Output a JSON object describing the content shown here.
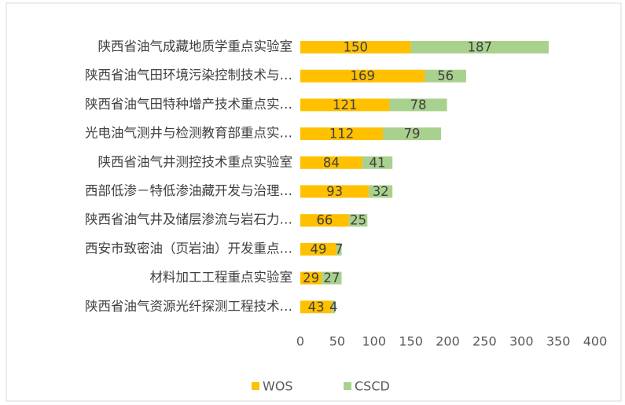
{
  "chart_data": {
    "type": "stacked-barh",
    "categories": [
      "陕西省油气成藏地质学重点实验室",
      "陕西省油气田环境污染控制技术与…",
      "陕西省油气田特种增产技术重点实…",
      "光电油气测井与检测教育部重点实…",
      "陕西省油气井测控技术重点实验室",
      "西部低渗－特低渗油藏开发与治理…",
      "陕西省油气井及储层渗流与岩石力…",
      "西安市致密油（页岩油）开发重点…",
      "材料加工工程重点实验室",
      "陕西省油气资源光纤探测工程技术…"
    ],
    "series": [
      {
        "name": "WOS",
        "color": "#FFC000",
        "values": [
          150,
          169,
          121,
          112,
          84,
          93,
          66,
          49,
          29,
          43
        ]
      },
      {
        "name": "CSCD",
        "color": "#A9D18E",
        "values": [
          187,
          56,
          78,
          79,
          41,
          32,
          25,
          7,
          27,
          4
        ]
      }
    ],
    "xlim": [
      0,
      400
    ],
    "xticks": [
      0,
      50,
      100,
      150,
      200,
      250,
      300,
      350,
      400
    ],
    "grid": false,
    "legend": "bottom"
  }
}
